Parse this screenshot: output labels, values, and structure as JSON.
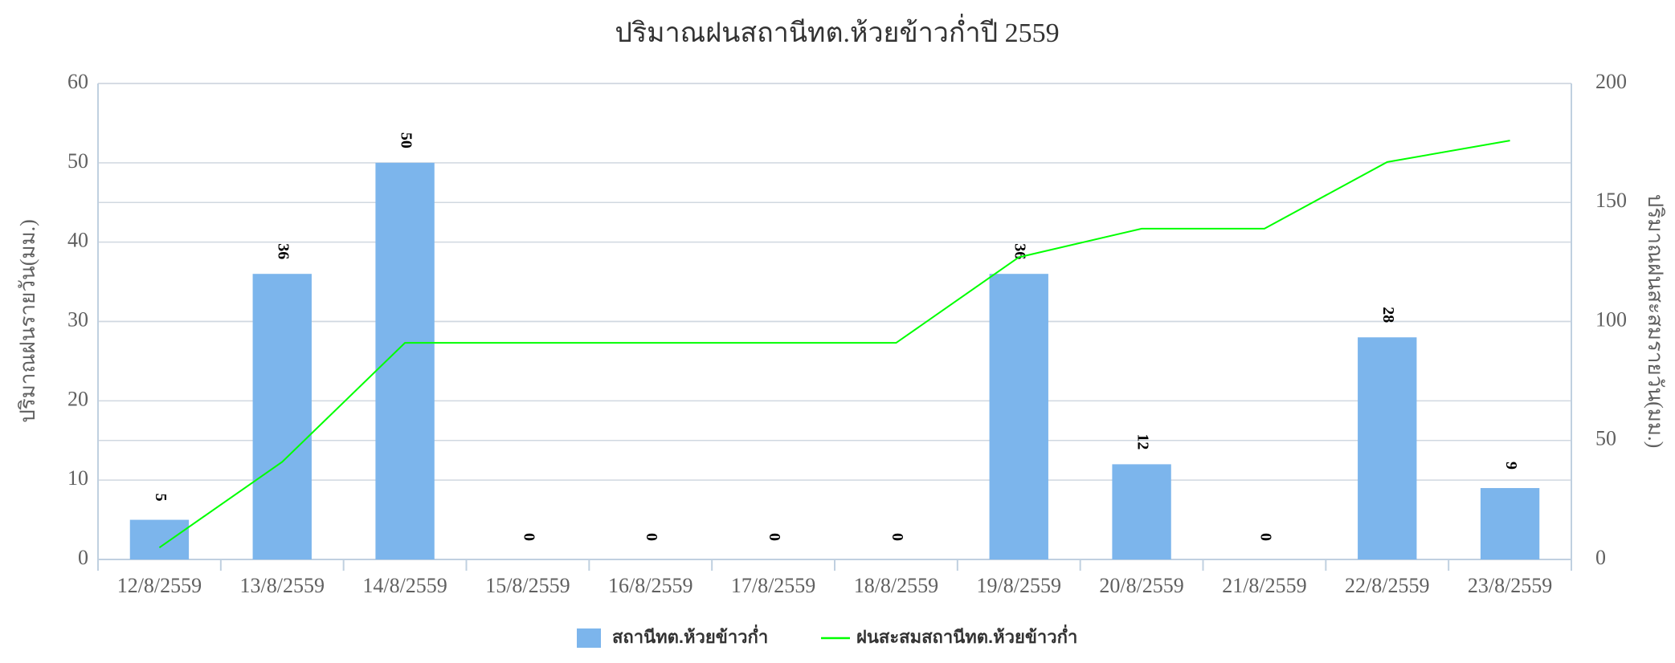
{
  "chart_data": {
    "type": "bar",
    "title": "ปริมาณฝนสถานีทต.ห้วยข้าวก่ำปี 2559",
    "y_label": "ปริมาณฝนรายวัน(มม.)",
    "y2_label": "ปริมาณฝนสะสมรายวัน(มม.)",
    "categories": [
      "12/8/2559",
      "13/8/2559",
      "14/8/2559",
      "15/8/2559",
      "16/8/2559",
      "17/8/2559",
      "18/8/2559",
      "19/8/2559",
      "20/8/2559",
      "21/8/2559",
      "22/8/2559",
      "23/8/2559"
    ],
    "series": [
      {
        "name": "สถานีทต.ห้วยข้าวก่ำ",
        "type": "bar",
        "color": "#7cb5ec",
        "values": [
          5,
          36,
          50,
          0,
          0,
          0,
          0,
          36,
          12,
          0,
          28,
          9
        ]
      },
      {
        "name": "ฝนสะสมสถานีทต.ห้วยข้าวก่ำ",
        "type": "line",
        "axis": "y2",
        "color": "#00ff00",
        "values": [
          5,
          41,
          91,
          91,
          91,
          91,
          91,
          127,
          139,
          139,
          167,
          176
        ]
      }
    ],
    "ylim": [
      0,
      60
    ],
    "yticks": [
      0,
      10,
      20,
      30,
      40,
      50,
      60
    ],
    "y2lim": [
      0,
      200
    ],
    "y2ticks": [
      0,
      50,
      100,
      150,
      200
    ],
    "grid": true,
    "legend": "bottom"
  }
}
